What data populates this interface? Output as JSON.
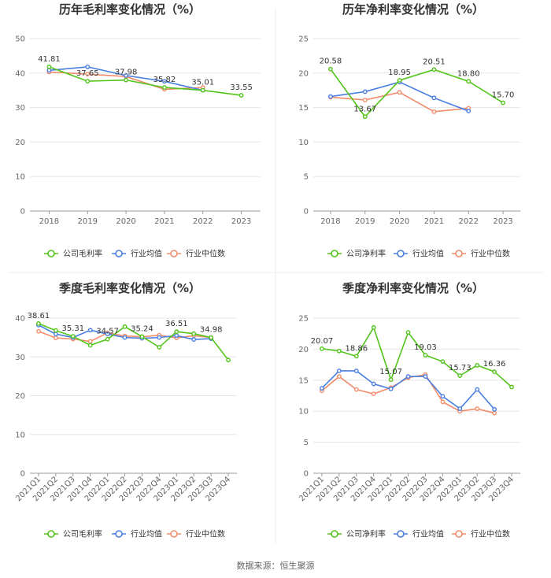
{
  "source": "数据来源：恒生聚源",
  "colors": {
    "company": "#52c41a",
    "avg": "#4a7fe0",
    "median": "#f08c6a",
    "grid": "#e6e6e6",
    "axis": "#999999"
  },
  "chart_data": [
    {
      "type": "line",
      "title": "历年毛利率变化情况（%）",
      "categories": [
        "2018",
        "2019",
        "2020",
        "2021",
        "2022",
        "2023"
      ],
      "ylim": [
        0,
        50
      ],
      "yticks": [
        0,
        10,
        20,
        30,
        40,
        50
      ],
      "grid": true,
      "legend_placement": "bottom",
      "series": [
        {
          "name": "公司毛利率",
          "key": "company",
          "values": [
            41.81,
            37.65,
            37.98,
            35.82,
            35.01,
            33.55
          ]
        },
        {
          "name": "行业均值",
          "key": "avg",
          "values": [
            40.8,
            41.8,
            39.3,
            37.6,
            35.0,
            null
          ]
        },
        {
          "name": "行业中位数",
          "key": "median",
          "values": [
            40.3,
            39.7,
            39.0,
            35.3,
            35.8,
            null
          ]
        }
      ],
      "data_labels": [
        "41.81",
        "37.65",
        "37.98",
        "35.82",
        "35.01",
        "33.55"
      ]
    },
    {
      "type": "line",
      "title": "历年净利率变化情况（%）",
      "categories": [
        "2018",
        "2019",
        "2020",
        "2021",
        "2022",
        "2023"
      ],
      "ylim": [
        0,
        25
      ],
      "yticks": [
        0,
        5,
        10,
        15,
        20,
        25
      ],
      "grid": true,
      "legend_placement": "bottom",
      "series": [
        {
          "name": "公司净利率",
          "key": "company",
          "values": [
            20.58,
            13.67,
            18.95,
            20.51,
            18.8,
            15.7
          ]
        },
        {
          "name": "行业均值",
          "key": "avg",
          "values": [
            16.6,
            17.3,
            18.7,
            16.4,
            14.5,
            null
          ]
        },
        {
          "name": "行业中位数",
          "key": "median",
          "values": [
            16.5,
            16.1,
            17.2,
            14.4,
            14.9,
            null
          ]
        }
      ],
      "data_labels": [
        "20.58",
        "13.67",
        "18.95",
        "20.51",
        "18.80",
        "15.70"
      ]
    },
    {
      "type": "line",
      "title": "季度毛利率变化情况（%）",
      "categories": [
        "2021Q1",
        "2021Q2",
        "2021Q3",
        "2021Q4",
        "2022Q1",
        "2022Q2",
        "2022Q3",
        "2022Q4",
        "2023Q1",
        "2023Q2",
        "2023Q3",
        "2023Q4"
      ],
      "ylim": [
        0,
        40
      ],
      "yticks": [
        0,
        10,
        20,
        30,
        40
      ],
      "grid": true,
      "legend_placement": "bottom",
      "series": [
        {
          "name": "公司毛利率",
          "key": "company",
          "values": [
            38.61,
            36.8,
            35.31,
            33.0,
            34.57,
            37.8,
            35.24,
            32.5,
            36.51,
            36.0,
            34.98,
            29.2
          ]
        },
        {
          "name": "行业均值",
          "key": "avg",
          "values": [
            38.2,
            35.9,
            35.0,
            36.9,
            35.9,
            35.0,
            34.8,
            35.0,
            35.5,
            34.5,
            34.7,
            null
          ]
        },
        {
          "name": "行业中位数",
          "key": "median",
          "values": [
            36.6,
            34.9,
            34.6,
            34.0,
            36.2,
            35.4,
            35.2,
            35.6,
            34.9,
            35.5,
            35.0,
            null
          ]
        }
      ],
      "data_labels": [
        "38.61",
        "",
        "35.31",
        "",
        "34.57",
        "",
        "35.24",
        "",
        "36.51",
        "",
        "34.98",
        ""
      ]
    },
    {
      "type": "line",
      "title": "季度净利率变化情况（%）",
      "categories": [
        "2021Q1",
        "2021Q2",
        "2021Q3",
        "2021Q4",
        "2022Q1",
        "2022Q2",
        "2022Q3",
        "2022Q4",
        "2023Q1",
        "2023Q2",
        "2023Q3",
        "2023Q4"
      ],
      "ylim": [
        0,
        25
      ],
      "yticks": [
        0,
        5,
        10,
        15,
        20,
        25
      ],
      "grid": true,
      "legend_placement": "bottom",
      "series": [
        {
          "name": "公司净利率",
          "key": "company",
          "values": [
            20.07,
            19.7,
            18.86,
            23.5,
            15.07,
            22.7,
            19.03,
            18.0,
            15.73,
            17.4,
            16.36,
            13.9
          ]
        },
        {
          "name": "行业均值",
          "key": "avg",
          "values": [
            13.7,
            16.5,
            16.5,
            14.4,
            13.6,
            15.6,
            15.6,
            12.4,
            10.4,
            13.5,
            10.3,
            null
          ]
        },
        {
          "name": "行业中位数",
          "key": "median",
          "values": [
            13.3,
            15.6,
            13.5,
            12.8,
            13.8,
            15.4,
            15.9,
            11.5,
            10.0,
            10.4,
            9.7,
            null
          ]
        }
      ],
      "data_labels": [
        "20.07",
        "",
        "18.86",
        "",
        "15.07",
        "",
        "19.03",
        "",
        "15.73",
        "",
        "16.36",
        ""
      ]
    }
  ]
}
